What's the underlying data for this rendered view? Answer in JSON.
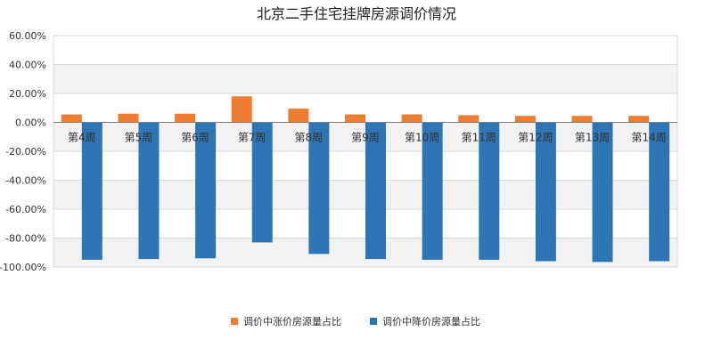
{
  "chart_data": {
    "type": "bar",
    "title": "北京二手住宅挂牌房源调价情况",
    "categories": [
      "第4周",
      "第5周",
      "第6周",
      "第7周",
      "第8周",
      "第9周",
      "第10周",
      "第11周",
      "第12周",
      "第13周",
      "第14周"
    ],
    "series": [
      {
        "name": "调价中涨价房源量占比",
        "color": "#ed7d31",
        "values": [
          5.5,
          6.0,
          6.0,
          18.0,
          9.5,
          5.5,
          5.5,
          5.0,
          4.5,
          4.5,
          4.5
        ]
      },
      {
        "name": "调价中降价房源量占比",
        "color": "#2e75b6",
        "values": [
          -95.0,
          -94.5,
          -94.0,
          -83.0,
          -91.0,
          -94.5,
          -95.0,
          -95.0,
          -96.0,
          -96.5,
          -96.0
        ]
      }
    ],
    "ylim": [
      -100,
      60
    ],
    "yticks": [
      "60.00%",
      "40.00%",
      "20.00%",
      "0.00%",
      "-20.00%",
      "-40.00%",
      "-60.00%",
      "-80.00%",
      "-100.00%"
    ],
    "grid": true,
    "legend": "bottom"
  }
}
